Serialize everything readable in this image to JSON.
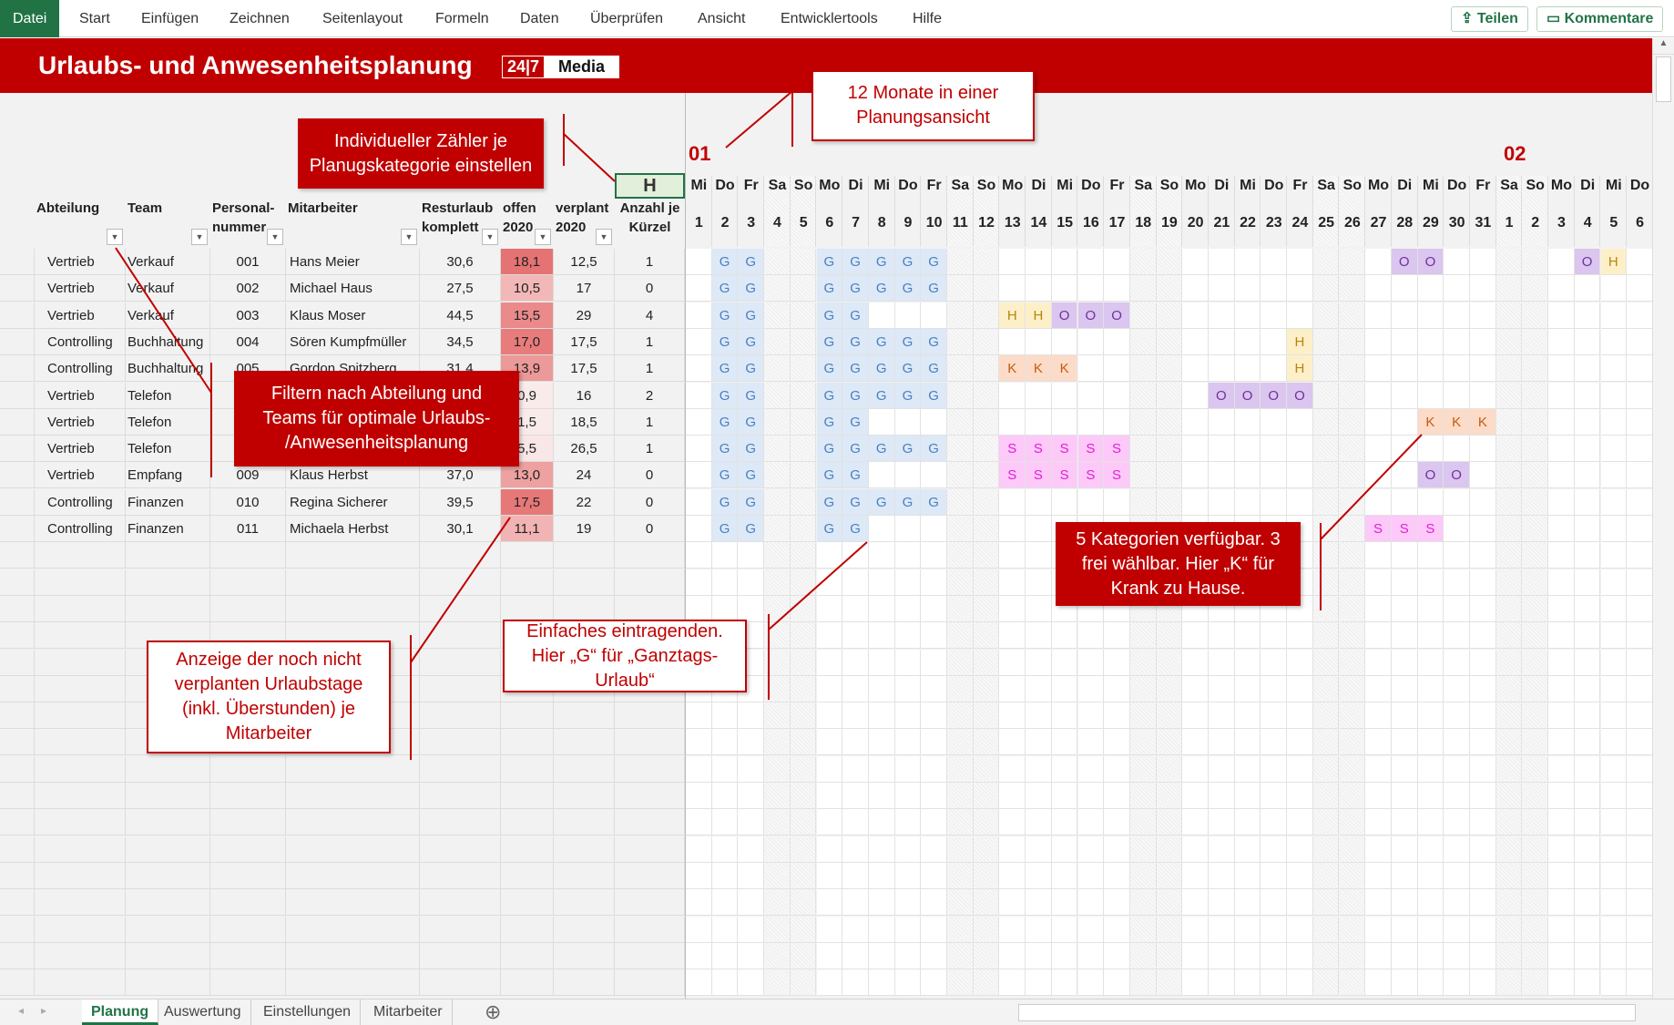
{
  "menu": {
    "items": [
      "Datei",
      "Start",
      "Einfügen",
      "Zeichnen",
      "Seitenlayout",
      "Formeln",
      "Daten",
      "Überprüfen",
      "Ansicht",
      "Entwicklertools",
      "Hilfe"
    ],
    "share": "Teilen",
    "comments": "Kommentare"
  },
  "sheet": {
    "title": "Urlaubs- und Anwesenheitsplanung",
    "logo": {
      "left": "24|7",
      "right": "Media"
    },
    "counter_code": "H",
    "headers": [
      [
        "Abteilung",
        ""
      ],
      [
        "Team",
        ""
      ],
      [
        "Personal-",
        "nummer"
      ],
      [
        "Mitarbeiter",
        ""
      ],
      [
        "Resturlaub",
        "komplett"
      ],
      [
        "offen",
        "2020"
      ],
      [
        "verplant",
        "2020"
      ],
      [
        "Anzahl je",
        "Kürzel"
      ]
    ],
    "months": [
      "01",
      "02"
    ],
    "day_names": [
      "Mi",
      "Do",
      "Fr",
      "Sa",
      "So",
      "Mo",
      "Di",
      "Mi",
      "Do",
      "Fr",
      "Sa",
      "So",
      "Mo",
      "Di",
      "Mi",
      "Do",
      "Fr",
      "Sa",
      "So",
      "Mo",
      "Di",
      "Mi",
      "Do",
      "Fr",
      "Sa",
      "So",
      "Mo",
      "Di",
      "Mi",
      "Do",
      "Fr",
      "Sa",
      "So",
      "Mo",
      "Di",
      "Mi",
      "Do"
    ],
    "day_numbers": [
      "1",
      "2",
      "3",
      "4",
      "5",
      "6",
      "7",
      "8",
      "9",
      "10",
      "11",
      "12",
      "13",
      "14",
      "15",
      "16",
      "17",
      "18",
      "19",
      "20",
      "21",
      "22",
      "23",
      "24",
      "25",
      "26",
      "27",
      "28",
      "29",
      "30",
      "31",
      "1",
      "2",
      "3",
      "4",
      "5",
      "6"
    ],
    "rows": [
      {
        "abteilung": "Vertrieb",
        "team": "Verkauf",
        "nr": "001",
        "name": "Hans Meier",
        "rest": "30,6",
        "offen": "18,1",
        "verplant": "12,5",
        "anzahl": "1",
        "plan": "-GG--GGGGG-----------------OO-----OH-"
      },
      {
        "abteilung": "Vertrieb",
        "team": "Verkauf",
        "nr": "002",
        "name": "Michael Haus",
        "rest": "27,5",
        "offen": "10,5",
        "verplant": "17",
        "anzahl": "0",
        "plan": "-GG--GGGGG---------------------------"
      },
      {
        "abteilung": "Vertrieb",
        "team": "Verkauf",
        "nr": "003",
        "name": "Klaus Moser",
        "rest": "44,5",
        "offen": "15,5",
        "verplant": "29",
        "anzahl": "4",
        "plan": "-GG--GG-----HHOOO--------------------"
      },
      {
        "abteilung": "Controlling",
        "team": "Buchhaltung",
        "nr": "004",
        "name": "Sören Kumpfmüller",
        "rest": "34,5",
        "offen": "17,0",
        "verplant": "17,5",
        "anzahl": "1",
        "plan": "-GG--GGGGG-------------H-------------"
      },
      {
        "abteilung": "Controlling",
        "team": "Buchhaltung",
        "nr": "005",
        "name": "Gordon Spitzberg",
        "rest": "31,4",
        "offen": "13,9",
        "verplant": "17,5",
        "anzahl": "1",
        "plan": "-GG--GGGGG--KKK--------H-------------"
      },
      {
        "abteilung": "Vertrieb",
        "team": "Telefon",
        "nr": "",
        "name": "",
        "rest": "",
        "offen": "0,9",
        "verplant": "16",
        "anzahl": "2",
        "plan": "-GG--GGGGG----------OOOO-------------"
      },
      {
        "abteilung": "Vertrieb",
        "team": "Telefon",
        "nr": "",
        "name": "",
        "rest": "",
        "offen": "1,5",
        "verplant": "18,5",
        "anzahl": "1",
        "plan": "-GG--GG---------------------KKK------"
      },
      {
        "abteilung": "Vertrieb",
        "team": "Telefon",
        "nr": "",
        "name": "",
        "rest": "",
        "offen": "5,5",
        "verplant": "26,5",
        "anzahl": "1",
        "plan": "-GG--GGGGG--SSSSS--------------------"
      },
      {
        "abteilung": "Vertrieb",
        "team": "Empfang",
        "nr": "009",
        "name": "Klaus Herbst",
        "rest": "37,0",
        "offen": "13,0",
        "verplant": "24",
        "anzahl": "0",
        "plan": "-GG--GG-----SSSSS-----------OO-------"
      },
      {
        "abteilung": "Controlling",
        "team": "Finanzen",
        "nr": "010",
        "name": "Regina Sicherer",
        "rest": "39,5",
        "offen": "17,5",
        "verplant": "22",
        "anzahl": "0",
        "plan": "-GG--GGGGG---------------------------"
      },
      {
        "abteilung": "Controlling",
        "team": "Finanzen",
        "nr": "011",
        "name": "Michaela Herbst",
        "rest": "30,1",
        "offen": "11,1",
        "verplant": "19",
        "anzahl": "0",
        "plan": "-GG--GG-------------------SSS--------"
      }
    ],
    "category_colors": {
      "G": {
        "bg": "#dde9f6",
        "fg": "#4a7fc0"
      },
      "O": {
        "bg": "#dac6ee",
        "fg": "#7030a0"
      },
      "H": {
        "bg": "#fdf0c9",
        "fg": "#b8860b"
      },
      "K": {
        "bg": "#fcdcc8",
        "fg": "#c55a11"
      },
      "S": {
        "bg": "#fcc9f9",
        "fg": "#e020d0"
      }
    },
    "accent": "#c00000"
  },
  "callouts": {
    "counter": "Individueller Zähler je Planugskategorie einstellen",
    "months": "12 Monate in einer Planungsansicht",
    "filter": "Filtern nach Abteilung und Teams für optimale Urlaubs- /Anwesenheitsplanung",
    "remaining": "Anzeige der noch nicht verplanten Urlaubstage (inkl. Überstunden) je Mitarbeiter",
    "entry": "Einfaches eintragenden. Hier „G“ für „Ganztags-Urlaub“",
    "categories": "5 Kategorien verfügbar. 3 frei wählbar. Hier „K“ für Krank zu Hause."
  },
  "tabs": [
    "Planung",
    "Auswertung",
    "Einstellungen",
    "Mitarbeiter"
  ],
  "active_tab": "Planung"
}
